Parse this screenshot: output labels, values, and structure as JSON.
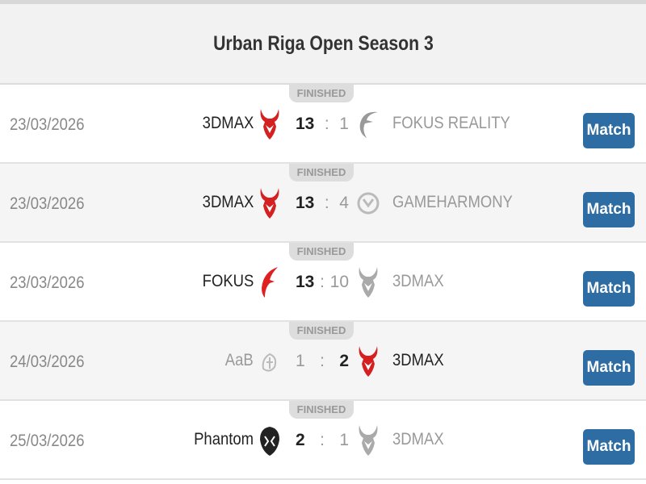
{
  "title": "Urban Riga Open Season 3",
  "colors": {
    "button": "#2e6da4",
    "header_bg": "#f2f2f2"
  },
  "matches": [
    {
      "status": "FINISHED",
      "date": "23/03/2026",
      "home": "3DMAX",
      "home_logo": "red-devil-logo",
      "home_score": "13",
      "away": "FOKUS REALITY",
      "away_logo": "grey-f-logo",
      "away_score": "1",
      "winner": "home",
      "button": "Match"
    },
    {
      "status": "FINISHED",
      "date": "23/03/2026",
      "home": "3DMAX",
      "home_logo": "red-devil-logo",
      "home_score": "13",
      "away": "GAMEHARMONY",
      "away_logo": "grey-gh-logo",
      "away_score": "4",
      "winner": "home",
      "button": "Match"
    },
    {
      "status": "FINISHED",
      "date": "23/03/2026",
      "home": "FOKUS",
      "home_logo": "red-f-logo",
      "home_score": "13",
      "away": "3DMAX",
      "away_logo": "grey-devil-logo",
      "away_score": "10",
      "winner": "home",
      "button": "Match"
    },
    {
      "status": "FINISHED",
      "date": "24/03/2026",
      "home": "AaB",
      "home_logo": "grey-aab-logo",
      "home_score": "1",
      "away": "3DMAX",
      "away_logo": "red-devil-logo",
      "away_score": "2",
      "winner": "away",
      "button": "Match"
    },
    {
      "status": "FINISHED",
      "date": "25/03/2026",
      "home": "Phantom",
      "home_logo": "black-phantom-logo",
      "home_score": "2",
      "away": "3DMAX",
      "away_logo": "grey-devil-logo",
      "away_score": "1",
      "winner": "home",
      "button": "Match"
    }
  ]
}
